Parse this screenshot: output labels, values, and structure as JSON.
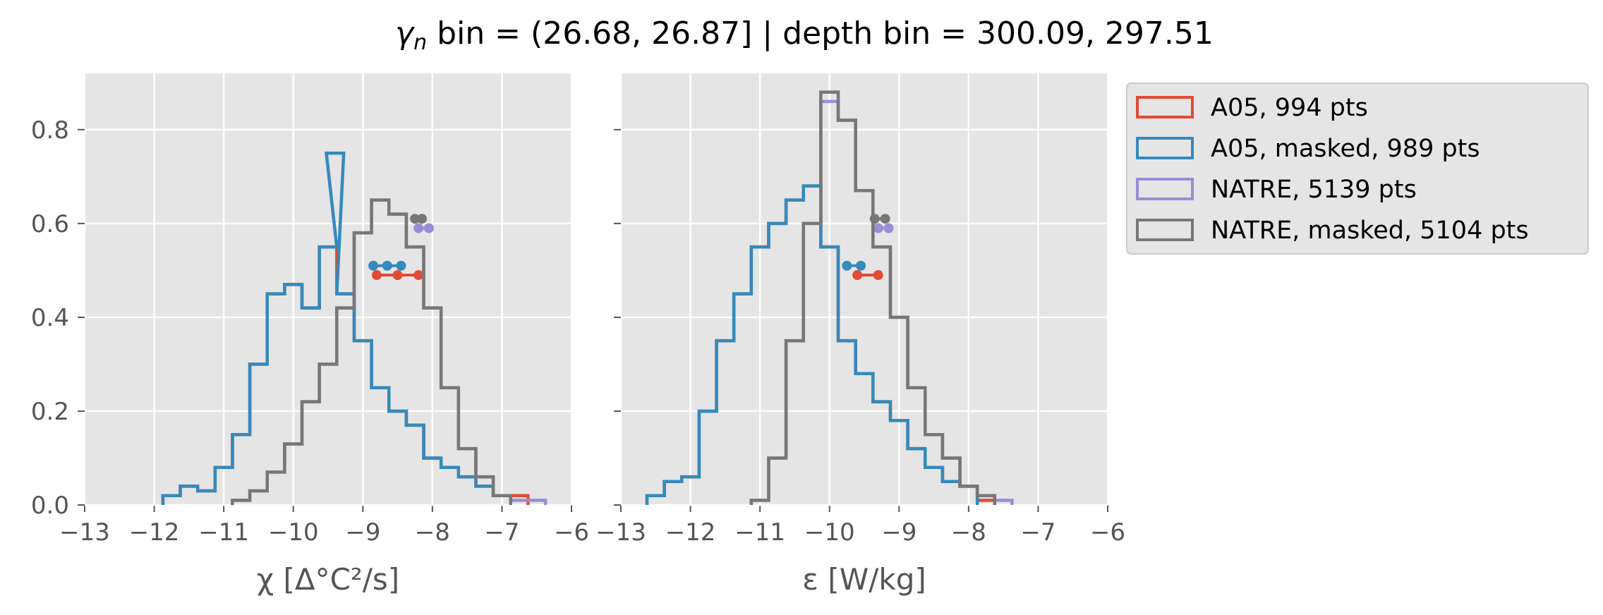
{
  "title": {
    "symbol": "γ",
    "subscript": "n",
    "text": " bin = (26.68, 26.87] | depth bin = 300.09, 297.51"
  },
  "colors": {
    "axes_bg": "#E5E5E5",
    "grid": "#FFFFFF",
    "tick_text": "#555555",
    "a05": "#E24A33",
    "a05_masked": "#348ABD",
    "natre": "#988ED5",
    "natre_masked": "#777777"
  },
  "chart_data": [
    {
      "type": "histogram",
      "xlabel": "χ [Δ°C²/s]",
      "xlim": [
        -13,
        -6
      ],
      "ylim": [
        0,
        0.92
      ],
      "xticks": [
        -13,
        -12,
        -11,
        -10,
        -9,
        -8,
        -7,
        -6
      ],
      "xtick_labels": [
        "−13",
        "−12",
        "−11",
        "−10",
        "−9",
        "−8",
        "−7",
        "−6"
      ],
      "yticks": [
        0.0,
        0.2,
        0.4,
        0.6,
        0.8
      ],
      "ytick_labels": [
        "0.0",
        "0.2",
        "0.4",
        "0.6",
        "0.8"
      ],
      "grid": true,
      "series": [
        {
          "name": "A05, 994 pts",
          "color_key": "a05",
          "x": [
            -11.75,
            -11.5,
            -11.25,
            -11.0,
            -10.75,
            -10.5,
            -10.25,
            -10.0,
            -9.75,
            -9.5,
            -9.25,
            -9.0,
            -8.75,
            -8.5,
            -8.25,
            -8.0,
            -7.75,
            -7.5,
            -7.25,
            -7.0,
            -6.75
          ],
          "y": [
            0.02,
            0.04,
            0.03,
            0.08,
            0.15,
            0.3,
            0.45,
            0.47,
            0.42,
            0.55,
            0.45,
            0.35,
            0.25,
            0.2,
            0.17,
            0.1,
            0.08,
            0.06,
            0.04,
            0.02,
            0.02
          ],
          "markers": {
            "x": [
              -8.8,
              -8.5,
              -8.2
            ],
            "y": 0.49
          }
        },
        {
          "name": "A05, masked,  989 pts",
          "color_key": "a05_masked",
          "x": [
            -11.75,
            -11.5,
            -11.25,
            -11.0,
            -10.75,
            -10.5,
            -10.25,
            -10.0,
            -9.75,
            -9.5,
            -9.4,
            -9.25,
            -9.0,
            -8.75,
            -8.5,
            -8.25,
            -8.0,
            -7.75,
            -7.5,
            -7.25,
            -7.0
          ],
          "y": [
            0.02,
            0.04,
            0.03,
            0.08,
            0.15,
            0.3,
            0.45,
            0.47,
            0.42,
            0.55,
            0.75,
            0.45,
            0.35,
            0.25,
            0.2,
            0.17,
            0.1,
            0.08,
            0.06,
            0.04,
            0.02
          ],
          "markers": {
            "x": [
              -8.85,
              -8.65,
              -8.45
            ],
            "y": 0.51
          }
        },
        {
          "name": "NATRE, 5139 pts",
          "color_key": "natre",
          "x": [
            -10.75,
            -10.5,
            -10.25,
            -10.0,
            -9.75,
            -9.5,
            -9.25,
            -9.0,
            -8.75,
            -8.5,
            -8.25,
            -8.0,
            -7.75,
            -7.5,
            -7.25,
            -7.0,
            -6.75,
            -6.5
          ],
          "y": [
            0.01,
            0.03,
            0.07,
            0.13,
            0.22,
            0.3,
            0.42,
            0.58,
            0.65,
            0.62,
            0.55,
            0.42,
            0.25,
            0.12,
            0.06,
            0.02,
            0.01,
            0.01
          ],
          "markers": {
            "x": [
              -8.2,
              -8.05
            ],
            "y": 0.59
          }
        },
        {
          "name": "NATRE, masked,  5104 pts",
          "color_key": "natre_masked",
          "x": [
            -10.75,
            -10.5,
            -10.25,
            -10.0,
            -9.75,
            -9.5,
            -9.25,
            -9.0,
            -8.75,
            -8.5,
            -8.25,
            -8.0,
            -7.75,
            -7.5,
            -7.25,
            -7.0
          ],
          "y": [
            0.01,
            0.03,
            0.07,
            0.13,
            0.22,
            0.3,
            0.42,
            0.58,
            0.65,
            0.62,
            0.55,
            0.42,
            0.25,
            0.12,
            0.06,
            0.02
          ],
          "markers": {
            "x": [
              -8.25,
              -8.15
            ],
            "y": 0.61
          }
        }
      ]
    },
    {
      "type": "histogram",
      "xlabel": "ε [W/kg]",
      "xlim": [
        -13,
        -6
      ],
      "ylim": [
        0,
        0.92
      ],
      "xticks": [
        -13,
        -12,
        -11,
        -10,
        -9,
        -8,
        -7,
        -6
      ],
      "xtick_labels": [
        "−13",
        "−12",
        "−11",
        "−10",
        "−9",
        "−8",
        "−7",
        "−6"
      ],
      "yticks": [
        0.0,
        0.2,
        0.4,
        0.6,
        0.8
      ],
      "ytick_labels": [
        "",
        "",
        "",
        "",
        ""
      ],
      "grid": true,
      "series": [
        {
          "name": "A05, 994 pts",
          "color_key": "a05",
          "x": [
            -12.5,
            -12.25,
            -12.0,
            -11.75,
            -11.5,
            -11.25,
            -11.0,
            -10.75,
            -10.5,
            -10.25,
            -10.0,
            -9.75,
            -9.5,
            -9.25,
            -9.0,
            -8.75,
            -8.5,
            -8.25,
            -8.0,
            -7.75
          ],
          "y": [
            0.02,
            0.05,
            0.06,
            0.2,
            0.35,
            0.45,
            0.55,
            0.6,
            0.65,
            0.68,
            0.55,
            0.35,
            0.28,
            0.22,
            0.18,
            0.12,
            0.08,
            0.05,
            0.04,
            0.01
          ],
          "markers": {
            "x": [
              -9.6,
              -9.3
            ],
            "y": 0.49
          }
        },
        {
          "name": "A05, masked,  989 pts",
          "color_key": "a05_masked",
          "x": [
            -12.5,
            -12.25,
            -12.0,
            -11.75,
            -11.5,
            -11.25,
            -11.0,
            -10.75,
            -10.5,
            -10.25,
            -10.0,
            -9.75,
            -9.5,
            -9.25,
            -9.0,
            -8.75,
            -8.5,
            -8.25,
            -8.0
          ],
          "y": [
            0.02,
            0.05,
            0.06,
            0.2,
            0.35,
            0.45,
            0.55,
            0.6,
            0.65,
            0.68,
            0.55,
            0.35,
            0.28,
            0.22,
            0.18,
            0.12,
            0.08,
            0.05,
            0.04
          ],
          "markers": {
            "x": [
              -9.75,
              -9.55
            ],
            "y": 0.51
          }
        },
        {
          "name": "NATRE, 5139 pts",
          "color_key": "natre",
          "x": [
            -11.0,
            -10.75,
            -10.5,
            -10.25,
            -10.0,
            -9.75,
            -9.5,
            -9.25,
            -9.0,
            -8.75,
            -8.5,
            -8.25,
            -8.0,
            -7.75,
            -7.5
          ],
          "y": [
            0.01,
            0.1,
            0.35,
            0.6,
            0.86,
            0.82,
            0.67,
            0.55,
            0.4,
            0.25,
            0.15,
            0.1,
            0.04,
            0.02,
            0.01
          ],
          "markers": {
            "x": [
              -9.3,
              -9.15
            ],
            "y": 0.59
          }
        },
        {
          "name": "NATRE, masked,  5104 pts",
          "color_key": "natre_masked",
          "x": [
            -11.0,
            -10.75,
            -10.5,
            -10.25,
            -10.0,
            -9.75,
            -9.5,
            -9.25,
            -9.0,
            -8.75,
            -8.5,
            -8.25,
            -8.0,
            -7.75
          ],
          "y": [
            0.01,
            0.1,
            0.35,
            0.6,
            0.88,
            0.82,
            0.67,
            0.55,
            0.4,
            0.25,
            0.15,
            0.1,
            0.04,
            0.02
          ],
          "markers": {
            "x": [
              -9.35,
              -9.2
            ],
            "y": 0.61
          }
        }
      ]
    }
  ],
  "legend": {
    "placement": "outside-right-top",
    "entries": [
      {
        "label": "A05, 994 pts",
        "color_key": "a05"
      },
      {
        "label": "A05, masked,  989 pts",
        "color_key": "a05_masked"
      },
      {
        "label": "NATRE, 5139 pts",
        "color_key": "natre"
      },
      {
        "label": "NATRE, masked,  5104 pts",
        "color_key": "natre_masked"
      }
    ]
  }
}
